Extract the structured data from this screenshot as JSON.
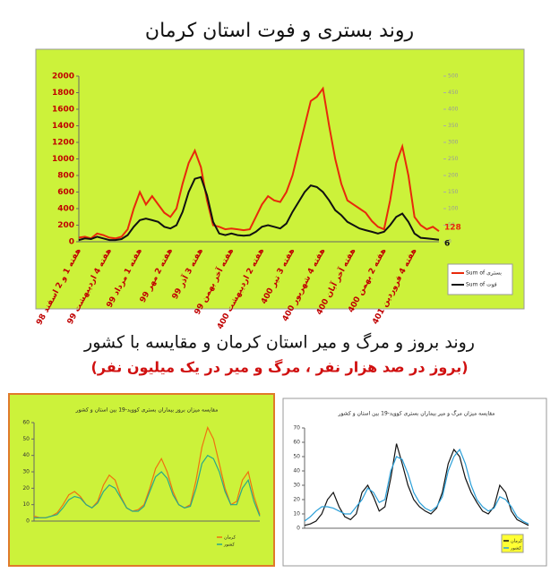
{
  "section_title": "روند بروز و مرگ و میر استان کرمان و مقایسه با کشور",
  "section_subtitle": "(بروز در صد هزار نفر ، مرگ و میر در یک میلیون نفر)",
  "chart_data": [
    {
      "type": "line",
      "title": "روند بستری و فوت استان کرمان",
      "categories": [
        "هفته 1 و 2 اسفند 98",
        null,
        null,
        null,
        null,
        "هفته 4 اردیبهشت 99",
        null,
        null,
        null,
        null,
        "هفته 1 مرداد 99",
        null,
        null,
        null,
        null,
        "هفته 2 مهر 99",
        null,
        null,
        null,
        null,
        "هفته 3 آذر 99",
        null,
        null,
        null,
        null,
        "هفته آخر بهمن 99",
        null,
        null,
        null,
        null,
        "هفته 2 اردیبهشت 400",
        null,
        null,
        null,
        null,
        "هفته 3 تیر 400",
        null,
        null,
        null,
        null,
        "هفته 4 شهریور 400",
        null,
        null,
        null,
        null,
        "هفته آخر آبان 400",
        null,
        null,
        null,
        null,
        "هفته 2 بهمن 400",
        null,
        null,
        null,
        null,
        "هفته 4 فروردین 401",
        null,
        null,
        null,
        null
      ],
      "series": [
        {
          "name": "Sum of بستری",
          "color": "#e8290b",
          "values": [
            50,
            60,
            40,
            100,
            80,
            50,
            40,
            60,
            150,
            400,
            600,
            450,
            550,
            450,
            350,
            300,
            400,
            700,
            950,
            1100,
            900,
            500,
            200,
            180,
            150,
            160,
            150,
            140,
            150,
            300,
            450,
            550,
            500,
            480,
            600,
            800,
            1100,
            1400,
            1700,
            1750,
            1850,
            1400,
            1000,
            700,
            500,
            450,
            400,
            350,
            250,
            180,
            150,
            500,
            950,
            1150,
            800,
            300,
            200,
            150,
            180,
            128
          ]
        },
        {
          "name": "Sum of فوت",
          "color": "#111111",
          "axis": "y2",
          "values": [
            5,
            10,
            8,
            15,
            10,
            5,
            5,
            8,
            20,
            45,
            65,
            70,
            65,
            60,
            45,
            40,
            50,
            90,
            150,
            190,
            195,
            140,
            60,
            25,
            20,
            25,
            20,
            18,
            20,
            30,
            45,
            50,
            45,
            40,
            55,
            90,
            120,
            150,
            170,
            165,
            150,
            125,
            95,
            80,
            60,
            50,
            40,
            35,
            30,
            25,
            30,
            50,
            75,
            85,
            60,
            25,
            12,
            10,
            8,
            6
          ]
        }
      ],
      "ylim": [
        0,
        2000
      ],
      "yticks": [
        0,
        200,
        400,
        600,
        800,
        1000,
        1200,
        1400,
        1600,
        1800,
        2000
      ],
      "y2lim": [
        0,
        500
      ],
      "y2ticks": [
        0,
        50,
        100,
        150,
        200,
        250,
        300,
        350,
        400,
        450,
        500
      ]
    },
    {
      "type": "line",
      "title": "مقایسه میزان بروز بیماران بستری کووید-19 بین استان و کشور",
      "categories": [
        null,
        null,
        null,
        null,
        null,
        null,
        null,
        null,
        null,
        null,
        null,
        null,
        null,
        null,
        null,
        null,
        null,
        null,
        null,
        null,
        null,
        null,
        null,
        null,
        null,
        null,
        null,
        null,
        null,
        null,
        null,
        null,
        null,
        null,
        null,
        null,
        null,
        null,
        null,
        null
      ],
      "series": [
        {
          "name": "کرمان",
          "color": "#f07010",
          "values": [
            3,
            2,
            2,
            3,
            5,
            10,
            16,
            18,
            15,
            10,
            8,
            12,
            22,
            28,
            25,
            15,
            8,
            6,
            7,
            10,
            20,
            32,
            38,
            30,
            18,
            10,
            8,
            10,
            25,
            45,
            57,
            50,
            35,
            20,
            10,
            12,
            25,
            30,
            15,
            4
          ]
        },
        {
          "name": "کشور",
          "color": "#2aa88a",
          "values": [
            2,
            2,
            2,
            3,
            4,
            8,
            13,
            15,
            14,
            10,
            8,
            11,
            18,
            22,
            20,
            14,
            8,
            6,
            6,
            9,
            18,
            27,
            30,
            26,
            16,
            10,
            8,
            9,
            20,
            35,
            40,
            38,
            30,
            18,
            10,
            10,
            20,
            25,
            12,
            3
          ]
        }
      ],
      "ylim": [
        0,
        60
      ],
      "yticks": [
        0,
        10,
        20,
        30,
        40,
        50,
        60
      ]
    },
    {
      "type": "line",
      "title": "مقایسه میزان مرگ و میر بیماران بستری کووید-19 بین استان و کشور",
      "categories": [
        null,
        null,
        null,
        null,
        null,
        null,
        null,
        null,
        null,
        null,
        null,
        null,
        null,
        null,
        null,
        null,
        null,
        null,
        null,
        null,
        null,
        null,
        null,
        null,
        null,
        null,
        null,
        null,
        null,
        null,
        null,
        null,
        null,
        null,
        null,
        null,
        null,
        null,
        null,
        null
      ],
      "series": [
        {
          "name": "کرمان",
          "color": "#111111",
          "values": [
            2,
            3,
            5,
            10,
            20,
            25,
            15,
            8,
            6,
            10,
            25,
            30,
            22,
            12,
            15,
            35,
            59,
            45,
            30,
            20,
            15,
            12,
            10,
            14,
            25,
            45,
            55,
            50,
            35,
            25,
            18,
            12,
            10,
            15,
            30,
            25,
            12,
            6,
            4,
            2
          ]
        },
        {
          "name": "کشور",
          "color": "#2a9fd8",
          "values": [
            5,
            8,
            12,
            15,
            15,
            14,
            12,
            10,
            10,
            15,
            20,
            28,
            25,
            18,
            20,
            40,
            50,
            48,
            38,
            25,
            18,
            14,
            12,
            15,
            22,
            40,
            50,
            55,
            45,
            30,
            20,
            15,
            12,
            14,
            22,
            20,
            15,
            8,
            5,
            3
          ]
        }
      ],
      "ylim": [
        0,
        70
      ],
      "yticks": [
        0,
        10,
        20,
        30,
        40,
        50,
        60,
        70
      ]
    }
  ]
}
